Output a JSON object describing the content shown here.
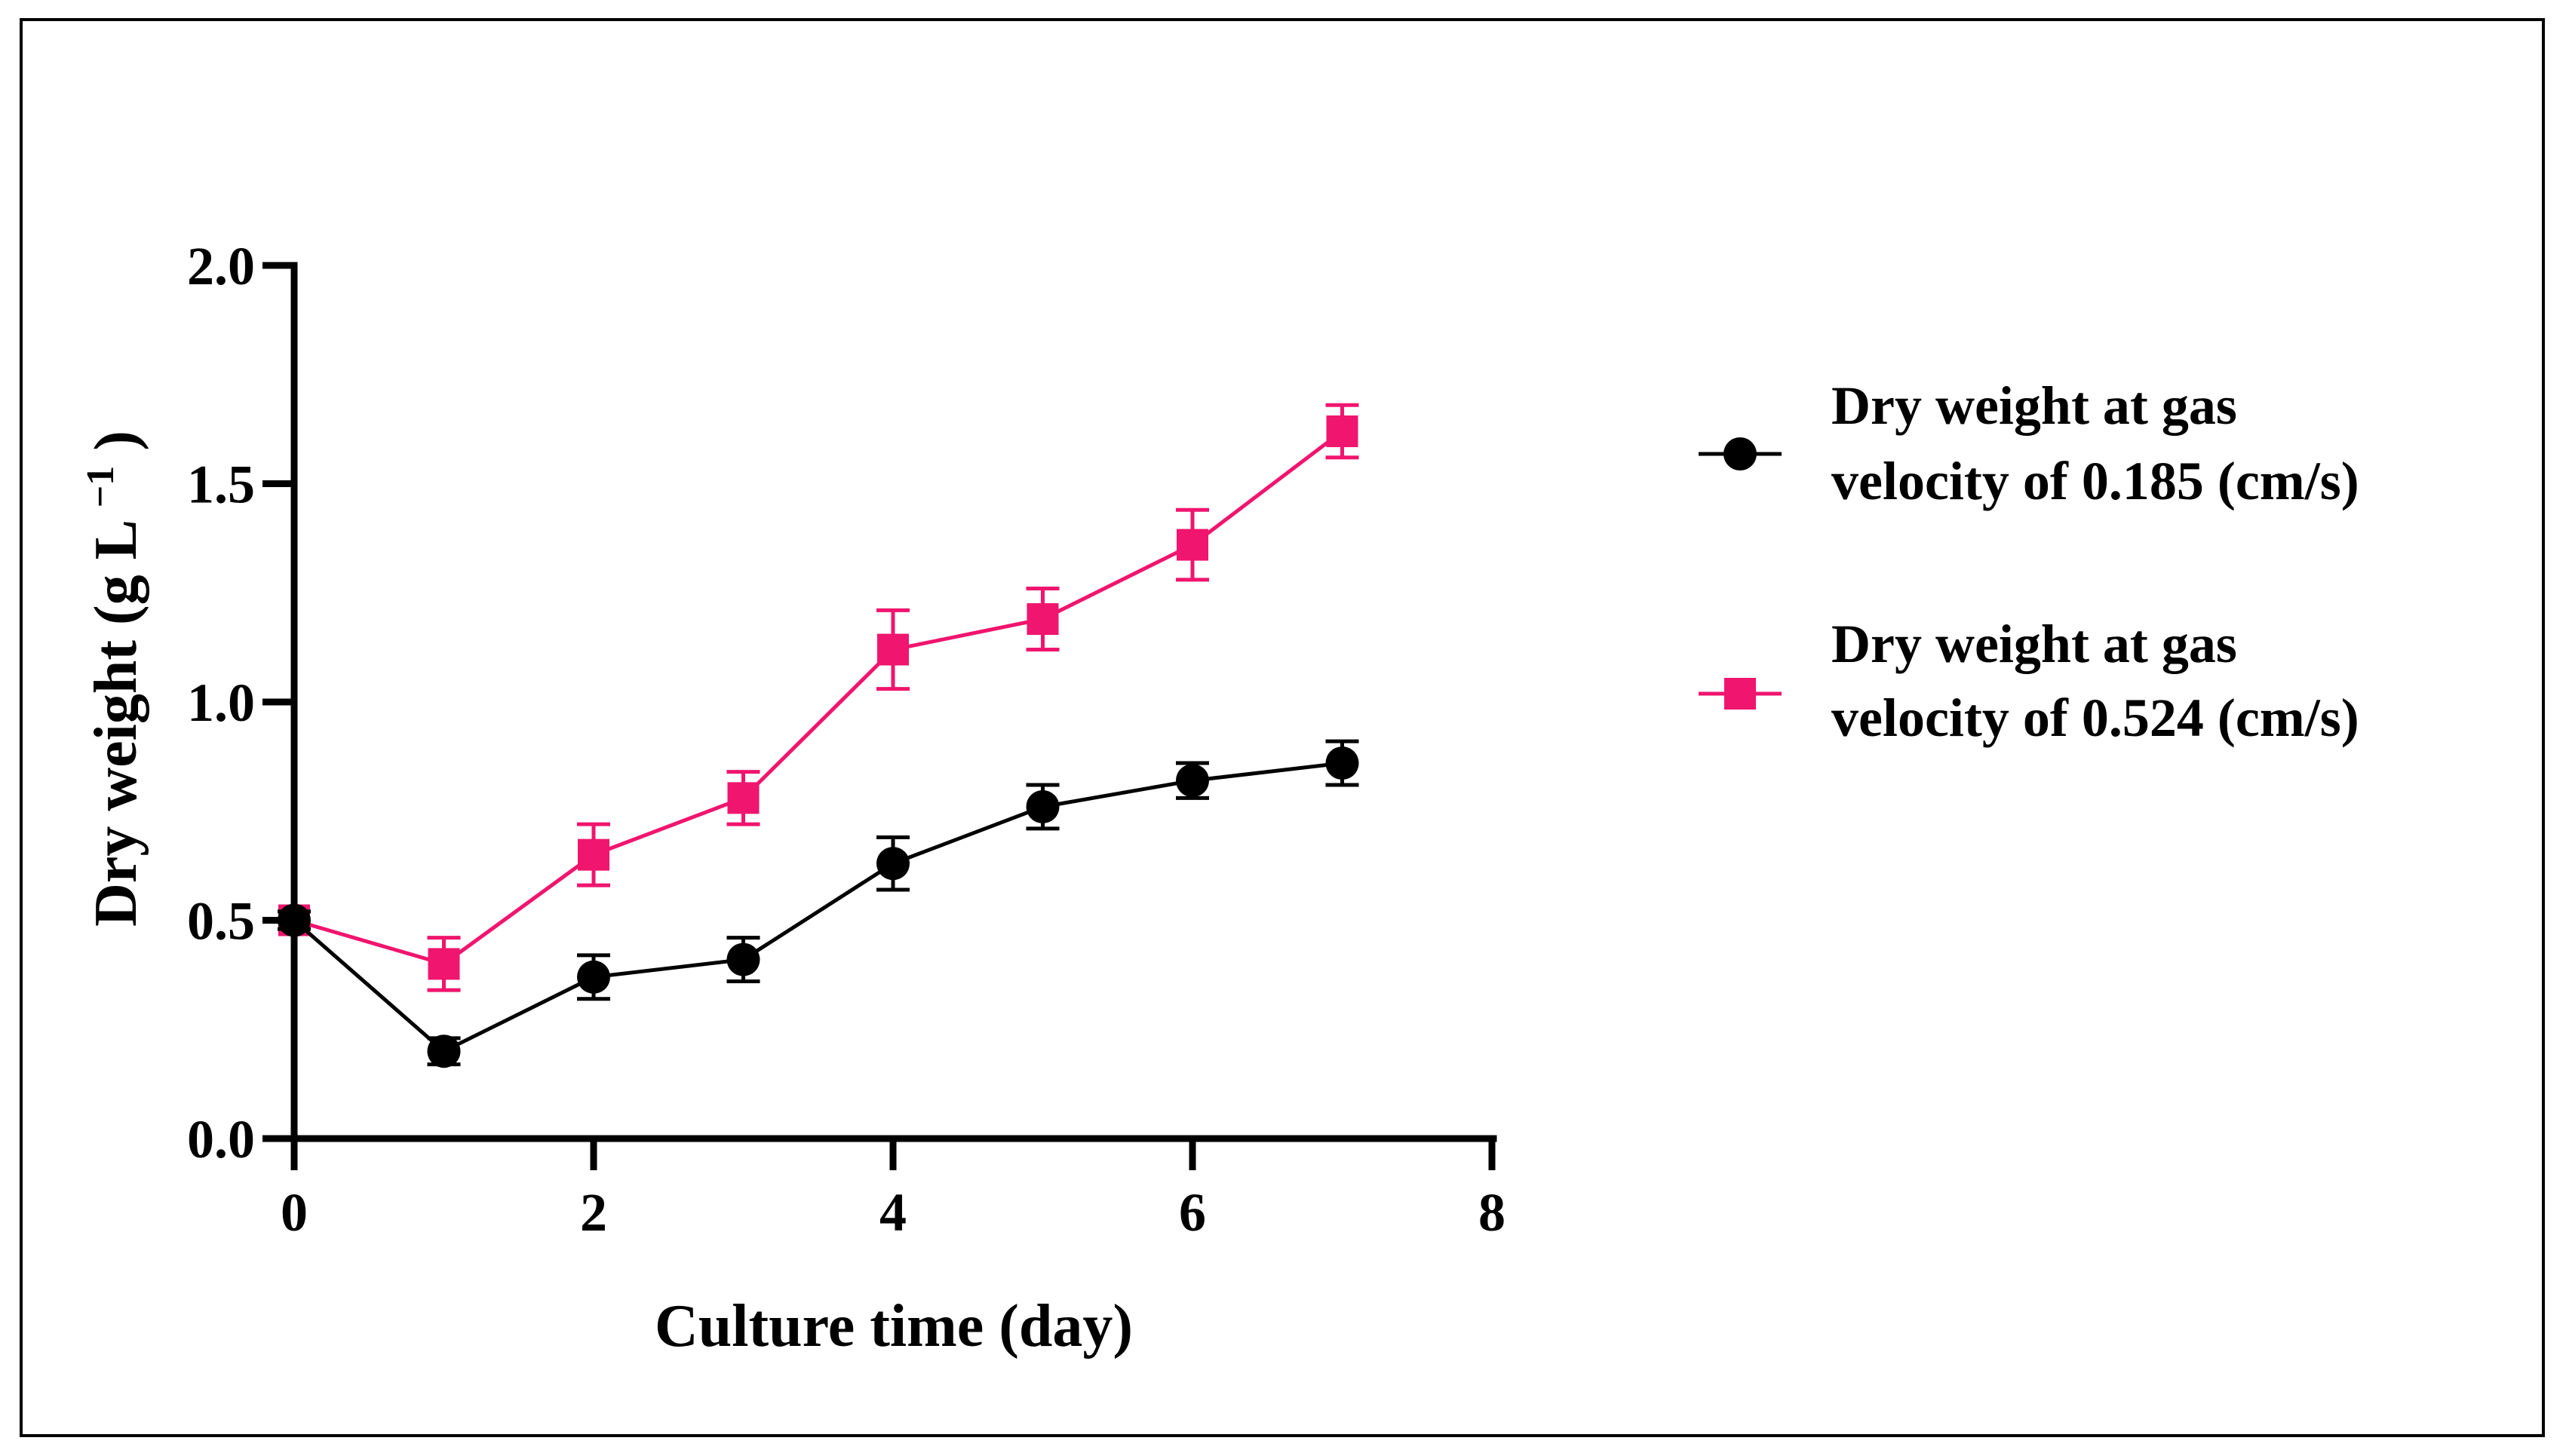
{
  "chart_data": {
    "type": "line",
    "title": "",
    "xlabel": "Culture time (day)",
    "ylabel": "Dry weight (g L",
    "ylabel_superscript": "−1",
    "ylabel_close": ")",
    "xlim": [
      0,
      8
    ],
    "ylim": [
      0,
      2.0
    ],
    "x_ticks": [
      0,
      2,
      4,
      6,
      8
    ],
    "x_tick_labels": [
      "0",
      "2",
      "4",
      "6",
      "8"
    ],
    "y_ticks": [
      0,
      0.5,
      1.0,
      1.5,
      2.0
    ],
    "y_tick_labels": [
      "0.0",
      "0.5",
      "1.0",
      "1.5",
      "2.0"
    ],
    "grid": false,
    "legend_position": "right",
    "x": [
      0,
      1,
      2,
      3,
      4,
      5,
      6,
      7
    ],
    "series": [
      {
        "name_line1": "Dry weight at gas",
        "name_line2": "velocity of 0.185 (cm/s)",
        "color": "#000000",
        "marker": "circle",
        "values": [
          0.5,
          0.2,
          0.37,
          0.41,
          0.63,
          0.76,
          0.82,
          0.86
        ],
        "errors": [
          0.02,
          0.03,
          0.05,
          0.05,
          0.06,
          0.05,
          0.04,
          0.05
        ]
      },
      {
        "name_line1": "Dry weight at gas",
        "name_line2": "velocity of 0.524 (cm/s)",
        "color": "#f0156e",
        "marker": "square",
        "values": [
          0.5,
          0.4,
          0.65,
          0.78,
          1.12,
          1.19,
          1.36,
          1.62
        ],
        "errors": [
          0.02,
          0.06,
          0.07,
          0.06,
          0.09,
          0.07,
          0.08,
          0.06
        ]
      }
    ]
  }
}
